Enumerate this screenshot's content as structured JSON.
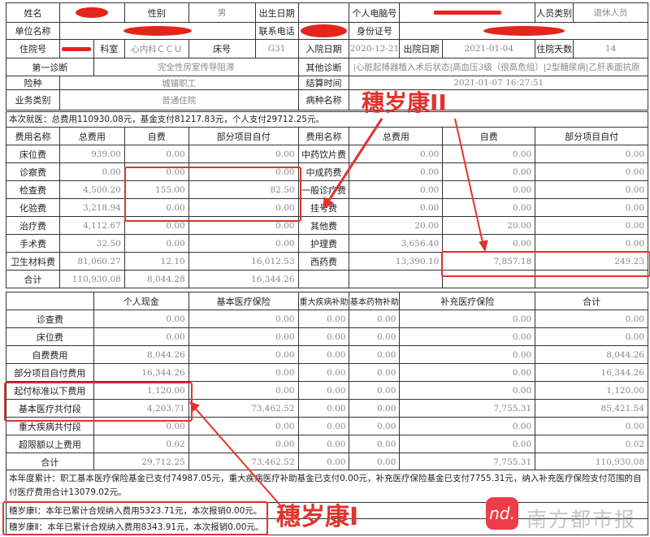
{
  "patient_info": {
    "rows": [
      [
        {
          "text": "姓名"
        },
        {
          "redacted": true
        },
        {
          "text": "性别"
        },
        {
          "text": "男"
        },
        {
          "text": "出生日期"
        },
        {
          "text": ""
        },
        {
          "text": "个人电脑号"
        },
        {
          "redacted": true
        },
        {
          "text": "人员类别"
        },
        {
          "text": "退休人员"
        }
      ],
      [
        {
          "text": "单位名称"
        },
        {
          "redacted": true
        },
        {
          "text": "联系电话"
        },
        {
          "redacted": true
        },
        {
          "text": "身份证号"
        },
        {
          "redacted": true
        }
      ],
      [
        {
          "text": "住院号"
        },
        {
          "redacted": true
        },
        {
          "text": "科室"
        },
        {
          "text": "心内科ＣＣＵ"
        },
        {
          "text": "床号"
        },
        {
          "text": "G31"
        },
        {
          "text": "入院日期"
        },
        {
          "text": "2020-12-21"
        },
        {
          "text": "出院日期"
        },
        {
          "text": "2021-01-04"
        },
        {
          "text": "住院天数"
        },
        {
          "text": "14"
        }
      ],
      [
        {
          "text": "第一诊断"
        },
        {
          "text": "完全性房室传导阻滞"
        },
        {
          "text": "其他诊断"
        },
        {
          "text": "|心脏起搏器植入术后状态|高血压3级（很高危组）|2型糖尿病|乙肝表面抗原"
        }
      ],
      [
        {
          "text": "险种"
        },
        {
          "text": "城镇职工"
        },
        {
          "text": "结算时间"
        },
        {
          "text": "2021-01-07 16:27:51"
        }
      ],
      [
        {
          "text": "业务类别"
        },
        {
          "text": "普通住院"
        },
        {
          "text": "病种名称"
        },
        {
          "text": ""
        }
      ]
    ],
    "summary": "本次就医：总费用110930.08元，基金支付81217.83元，个人支付29712.25元。"
  },
  "fee_table": {
    "headers": [
      "费用名称",
      "总费用",
      "自费",
      "部分项目自付",
      "费用名称",
      "总费用",
      "自费",
      "部分项目自付"
    ],
    "rows": [
      [
        "床位费",
        "939.00",
        "0.00",
        "0.00",
        "中药饮片费",
        "0.00",
        "0.00",
        "0.00"
      ],
      [
        "诊察费",
        "0.00",
        "0.00",
        "0.00",
        "中成药费",
        "0.00",
        "0.00",
        "0.00"
      ],
      [
        "检查费",
        "4,500.20",
        "155.00",
        "82.50",
        "一般诊疗费",
        "0.00",
        "0.00",
        "0.00"
      ],
      [
        "化验费",
        "3,218.94",
        "0.00",
        "0.00",
        "挂号费",
        "0.00",
        "0.00",
        "0.00"
      ],
      [
        "治疗费",
        "4,112.67",
        "0.00",
        "0.00",
        "其他费",
        "20.00",
        "20.00",
        "0.00"
      ],
      [
        "手术费",
        "32.50",
        "0.00",
        "0.00",
        "护理费",
        "3,656.40",
        "0.00",
        "0.00"
      ],
      [
        "卫生材料费",
        "81,060.27",
        "12.10",
        "16,012.53",
        "西药费",
        "13,390.10",
        "7,857.18",
        "249.23"
      ],
      [
        "合计",
        "110,930.08",
        "8,044.28",
        "16,344.26",
        "",
        "",
        "",
        ""
      ]
    ]
  },
  "payment_table": {
    "headers": [
      "",
      "个人现金",
      "基本医疗保险",
      "重大疾病补助",
      "基本药物补助",
      "补充医疗保险",
      "合计"
    ],
    "rows": [
      [
        "诊查费",
        "0.00",
        "0.00",
        "0.00",
        "0.00",
        "0.00",
        "0.00"
      ],
      [
        "床位费",
        "0.00",
        "0.00",
        "0.00",
        "0.00",
        "0.00",
        "0.00"
      ],
      [
        "自费费用",
        "8,044.26",
        "0.00",
        "0.00",
        "0.00",
        "0.00",
        "8,044.26"
      ],
      [
        "部分项目自付费用",
        "16,344.26",
        "0.00",
        "0.00",
        "0.00",
        "0.00",
        "16,344.26"
      ],
      [
        "起付标准以下费用",
        "1,120.00",
        "0.00",
        "0.00",
        "0.00",
        "0.00",
        "1,120.00"
      ],
      [
        "基本医疗共付段",
        "4,203.71",
        "73,462.52",
        "0.00",
        "0.00",
        "7,755.31",
        "85,421.54"
      ],
      [
        "重大疾病共付段",
        "0.00",
        "0.00",
        "0.00",
        "0.00",
        "0.00",
        "0.00"
      ],
      [
        "超限额以上费用",
        "0.02",
        "0.00",
        "0.00",
        "0.00",
        "0.00",
        "0.02"
      ],
      [
        "合计",
        "29,712.25",
        "73,462.52",
        "0.00",
        "0.00",
        "7,755.31",
        "110,930.08"
      ]
    ]
  },
  "annual_summary": "本年度累计：职工基本医疗保险基金已支付74987.05元，重大疾病医疗补助基金已支付0.00元，补充医疗保险基金已支付7755.31元，纳入补充医疗保险支付范围的自付医疗费用合计13079.02元。",
  "suisuikang_1": "穗岁康Ⅰ：本年已累计合规纳入费用5323.71元，本次报销0.00元。",
  "suisuikang_2": "穗岁康Ⅱ：本年已累计合规纳入费用8343.91元，本次报销0.00元。",
  "annotations": {
    "label_2": "穗岁康II",
    "label_1": "穗岁康I",
    "color": "#e0332c"
  },
  "watermark": {
    "logo": "nd.",
    "text": "南方都市报"
  }
}
